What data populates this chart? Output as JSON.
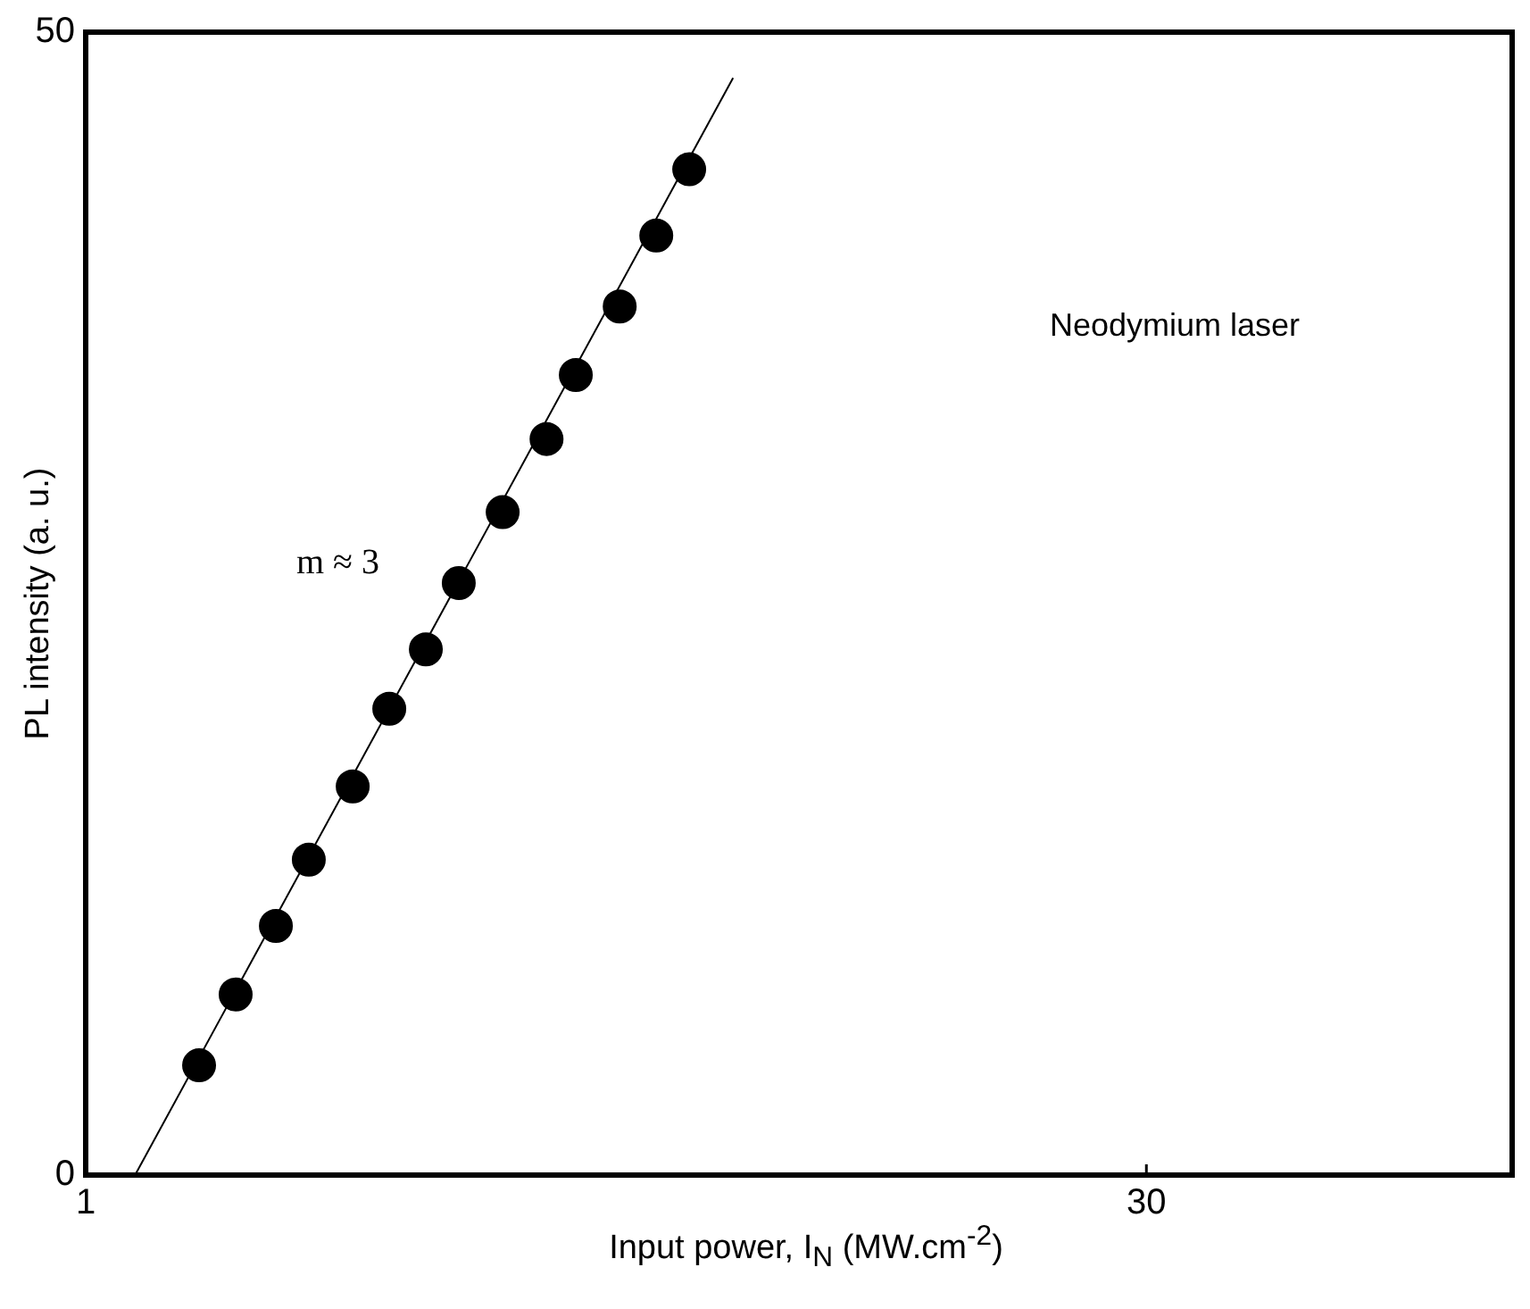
{
  "chart_data": {
    "type": "scatter",
    "xlabel": "Input power, I$_{N}$ (MW.cm$^{-2}$)",
    "ylabel": "PL intensity (a. u.)",
    "xlim": [
      1,
      40
    ],
    "xticks": [
      1,
      30
    ],
    "ylim": [
      0,
      50
    ],
    "yticks": [
      0,
      50
    ],
    "grid": false,
    "legend": false,
    "marker": "circle",
    "series": [
      {
        "type": "scatter",
        "color": "#000000",
        "x": [
          4.1,
          5.1,
          6.2,
          7.1,
          8.3,
          9.3,
          10.3,
          11.2,
          12.4,
          13.6,
          14.4,
          15.6,
          16.6,
          17.5
        ],
        "values": [
          4.8,
          7.9,
          10.9,
          13.8,
          17.0,
          20.4,
          23.0,
          25.9,
          29.0,
          32.2,
          35.0,
          38.0,
          41.1,
          44.0
        ]
      },
      {
        "type": "line",
        "color": "#000000",
        "marker": "none",
        "x": [
          2.35,
          18.7
        ],
        "values": [
          0,
          48.0
        ]
      }
    ],
    "annotations": [
      "m ≈ 3",
      "Neodymium laser"
    ]
  }
}
